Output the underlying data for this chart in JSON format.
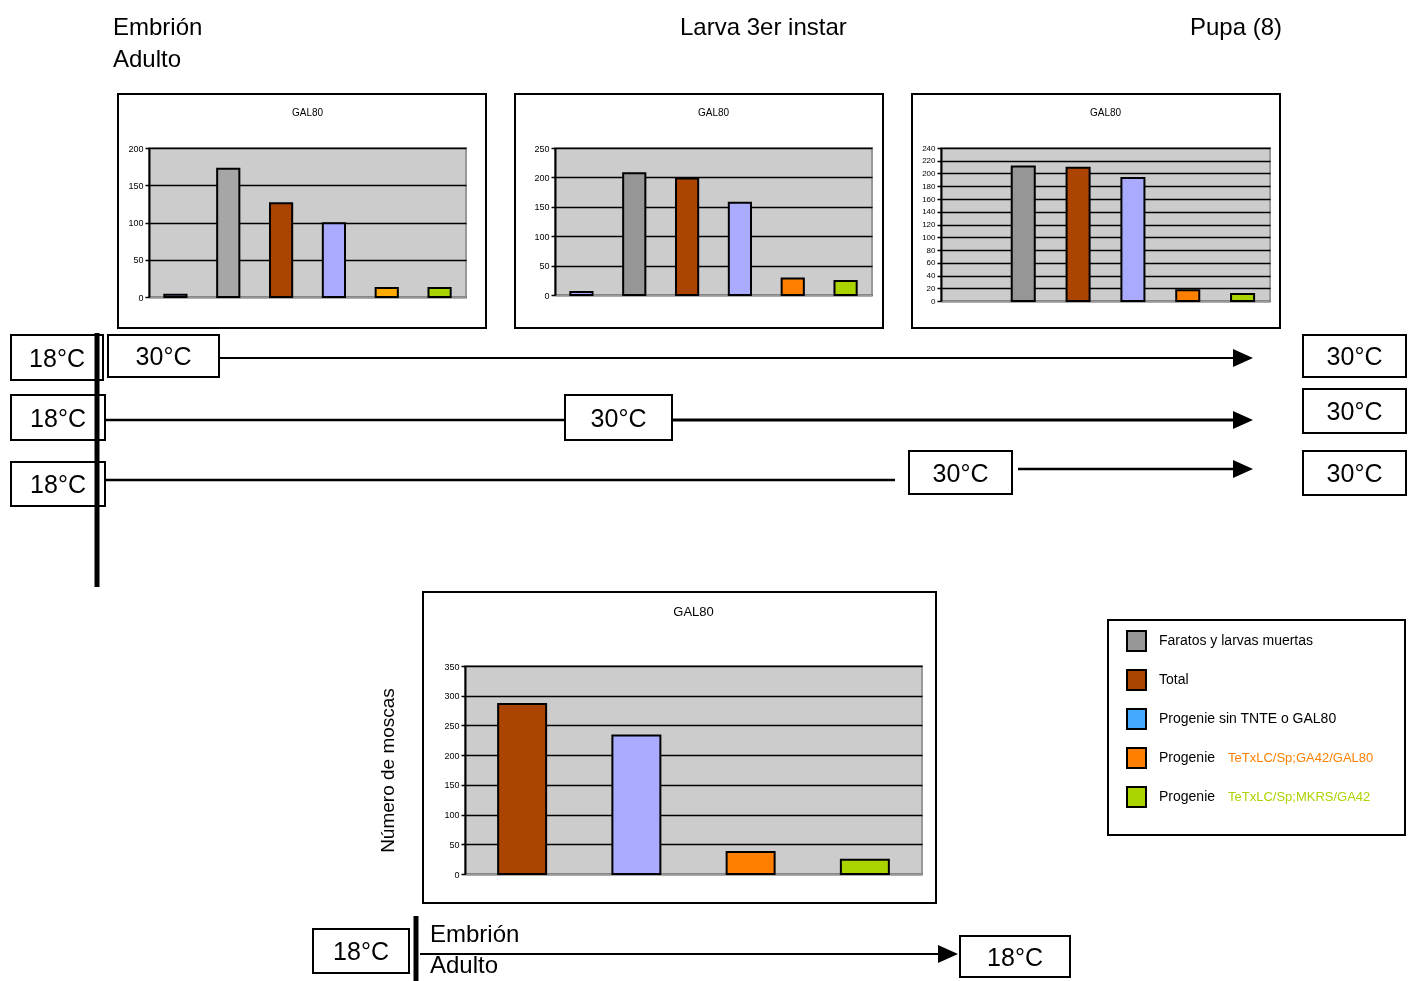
{
  "chart_data": [
    {
      "type": "other",
      "annotations": [
        "Embrión",
        "Adulto",
        "Larva 3er instar",
        "Pupa (8)"
      ]
    },
    {
      "type": "bar",
      "title": "GAL80",
      "categories": [
        null,
        null,
        null,
        null,
        null,
        null
      ],
      "values": [
        3,
        172,
        126,
        99,
        12,
        12
      ],
      "colors": [
        "#aaaaff",
        "#a6a6a6",
        "#aa4400",
        "#aaaaff",
        "#ffaa00",
        "#aad400"
      ],
      "ylim": [
        0,
        200
      ],
      "yticks": [
        0,
        50,
        100,
        150,
        200
      ],
      "grid": "y",
      "tick_labels": "y"
    },
    {
      "type": "bar",
      "title": "GAL80",
      "categories": [
        null,
        null,
        null,
        null,
        null,
        null
      ],
      "values": [
        5,
        207,
        198,
        157,
        28,
        24
      ],
      "colors": [
        "#aaaaff",
        "#969696",
        "#aa4400",
        "#aaaaff",
        "#ff8000",
        "#aad400"
      ],
      "ylim": [
        0,
        250
      ],
      "yticks": [
        0,
        50,
        100,
        150,
        200,
        250
      ],
      "grid": "y",
      "tick_labels": "y"
    },
    {
      "type": "bar",
      "title": "GAL80",
      "categories": [
        null,
        null,
        null,
        null,
        null,
        null
      ],
      "values": [
        null,
        211,
        209,
        193,
        17,
        11
      ],
      "colors": [
        "#aaaaff",
        "#969696",
        "#aa4400",
        "#aaaaff",
        "#ff8000",
        "#aad400"
      ],
      "ylim": [
        0,
        240
      ],
      "yticks": [
        0,
        20,
        40,
        60,
        80,
        100,
        120,
        140,
        160,
        180,
        200,
        220,
        240
      ],
      "grid": "y",
      "tick_labels": "y"
    },
    {
      "type": "other",
      "annotations": [
        "18°C",
        "30°C",
        "30°C",
        "18°C",
        "30°C",
        "30°C",
        "18°C",
        "30°C",
        "30°C"
      ]
    },
    {
      "type": "bar",
      "title": "GAL80",
      "ylabel": "Número de moscas",
      "categories": [
        null,
        null,
        null,
        null
      ],
      "values": [
        286,
        233,
        37,
        24
      ],
      "colors": [
        "#aa4400",
        "#aaaaff",
        "#ff8000",
        "#aad400"
      ],
      "ylim": [
        0,
        350
      ],
      "yticks": [
        0,
        50,
        100,
        150,
        200,
        250,
        300,
        350
      ],
      "grid": "y",
      "tick_labels": "y"
    },
    {
      "type": "other",
      "categories": [
        "Faratos y larvas muertas",
        "Total",
        "Progenie sin TNTE o GAL80",
        "Progenie",
        "Progenie"
      ],
      "colors": [
        "#969696",
        "#aa4400",
        "#44aaff",
        "#ff8000",
        "#aad400"
      ],
      "annotations": [
        "TeTxLC/Sp;GA42/GAL80",
        "TeTxLC/Sp;MKRS/GA42"
      ]
    },
    {
      "type": "other",
      "annotations": [
        "18°C",
        "Embrión",
        "Adulto",
        "18°C"
      ]
    }
  ]
}
